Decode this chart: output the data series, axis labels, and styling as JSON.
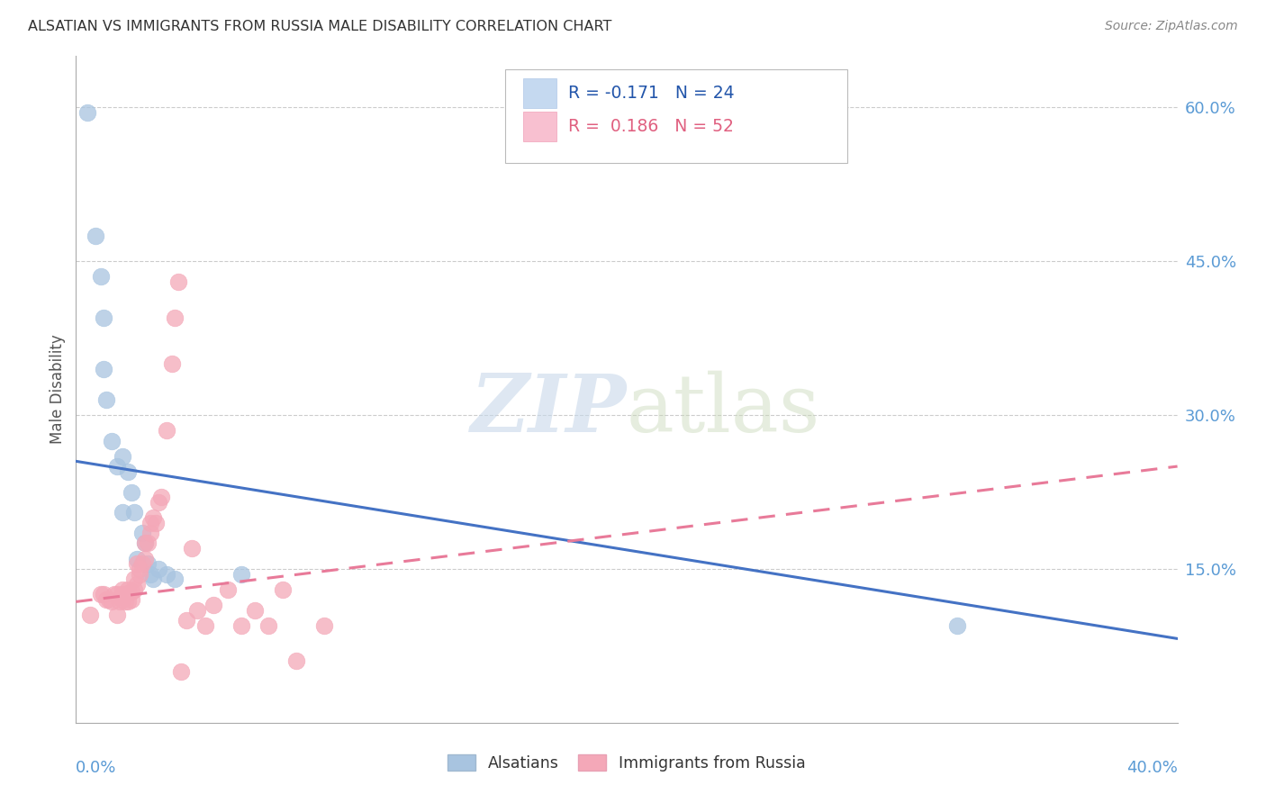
{
  "title": "ALSATIAN VS IMMIGRANTS FROM RUSSIA MALE DISABILITY CORRELATION CHART",
  "source": "Source: ZipAtlas.com",
  "ylabel": "Male Disability",
  "right_yticks": [
    "60.0%",
    "45.0%",
    "30.0%",
    "15.0%"
  ],
  "right_ytick_vals": [
    0.6,
    0.45,
    0.3,
    0.15
  ],
  "xlim": [
    0.0,
    0.4
  ],
  "ylim": [
    0.0,
    0.65
  ],
  "background_color": "#ffffff",
  "grid_color": "#cccccc",
  "series1_color": "#a8c4e0",
  "series2_color": "#f4a8b8",
  "line1_color": "#4472c4",
  "line2_color": "#e87a99",
  "alsatians_x": [
    0.004,
    0.007,
    0.009,
    0.01,
    0.01,
    0.011,
    0.013,
    0.015,
    0.017,
    0.017,
    0.019,
    0.02,
    0.021,
    0.022,
    0.024,
    0.025,
    0.026,
    0.027,
    0.028,
    0.03,
    0.033,
    0.036,
    0.06,
    0.32
  ],
  "alsatians_y": [
    0.595,
    0.475,
    0.435,
    0.345,
    0.395,
    0.315,
    0.275,
    0.25,
    0.26,
    0.205,
    0.245,
    0.225,
    0.205,
    0.16,
    0.185,
    0.175,
    0.155,
    0.145,
    0.14,
    0.15,
    0.145,
    0.14,
    0.145,
    0.095
  ],
  "russia_x": [
    0.005,
    0.009,
    0.01,
    0.011,
    0.012,
    0.013,
    0.014,
    0.015,
    0.015,
    0.016,
    0.017,
    0.017,
    0.017,
    0.018,
    0.018,
    0.019,
    0.019,
    0.02,
    0.02,
    0.021,
    0.021,
    0.022,
    0.022,
    0.023,
    0.023,
    0.024,
    0.025,
    0.025,
    0.026,
    0.027,
    0.027,
    0.028,
    0.029,
    0.03,
    0.031,
    0.033,
    0.035,
    0.036,
    0.037,
    0.038,
    0.04,
    0.042,
    0.044,
    0.047,
    0.05,
    0.055,
    0.06,
    0.065,
    0.07,
    0.075,
    0.08,
    0.09
  ],
  "russia_y": [
    0.105,
    0.125,
    0.125,
    0.12,
    0.12,
    0.118,
    0.125,
    0.105,
    0.125,
    0.118,
    0.12,
    0.125,
    0.13,
    0.118,
    0.125,
    0.118,
    0.13,
    0.12,
    0.128,
    0.13,
    0.14,
    0.135,
    0.155,
    0.145,
    0.15,
    0.155,
    0.16,
    0.175,
    0.175,
    0.185,
    0.195,
    0.2,
    0.195,
    0.215,
    0.22,
    0.285,
    0.35,
    0.395,
    0.43,
    0.05,
    0.1,
    0.17,
    0.11,
    0.095,
    0.115,
    0.13,
    0.095,
    0.11,
    0.095,
    0.13,
    0.06,
    0.095
  ],
  "line1_x0": 0.0,
  "line1_y0": 0.255,
  "line1_x1": 0.4,
  "line1_y1": 0.082,
  "line2_x0": 0.0,
  "line2_y0": 0.118,
  "line2_x1": 0.4,
  "line2_y1": 0.25
}
